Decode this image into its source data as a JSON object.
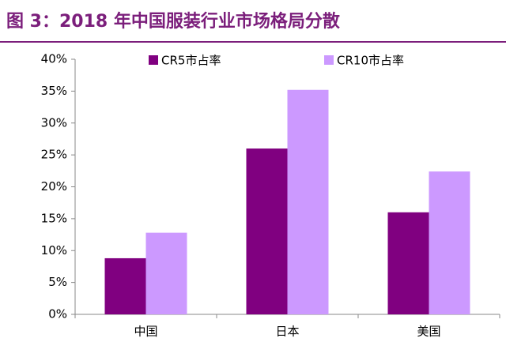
{
  "chart_data": {
    "type": "bar",
    "title": "图 3：2018 年中国服装行业市场格局分散",
    "categories": [
      "中国",
      "日本",
      "美国"
    ],
    "series": [
      {
        "name": "CR5市占率",
        "color": "#800080",
        "values": [
          8.8,
          26.0,
          16.0
        ]
      },
      {
        "name": "CR10市占率",
        "color": "#CC99FF",
        "values": [
          12.8,
          35.2,
          22.4
        ]
      }
    ],
    "ylim": [
      0,
      40
    ],
    "yticks": [
      {
        "value": 0,
        "label": "0%"
      },
      {
        "value": 5,
        "label": "5%"
      },
      {
        "value": 10,
        "label": "10%"
      },
      {
        "value": 15,
        "label": "15%"
      },
      {
        "value": 20,
        "label": "20%"
      },
      {
        "value": 25,
        "label": "25%"
      },
      {
        "value": 30,
        "label": "30%"
      },
      {
        "value": 35,
        "label": "35%"
      },
      {
        "value": 40,
        "label": "40%"
      }
    ],
    "legend": "top"
  }
}
